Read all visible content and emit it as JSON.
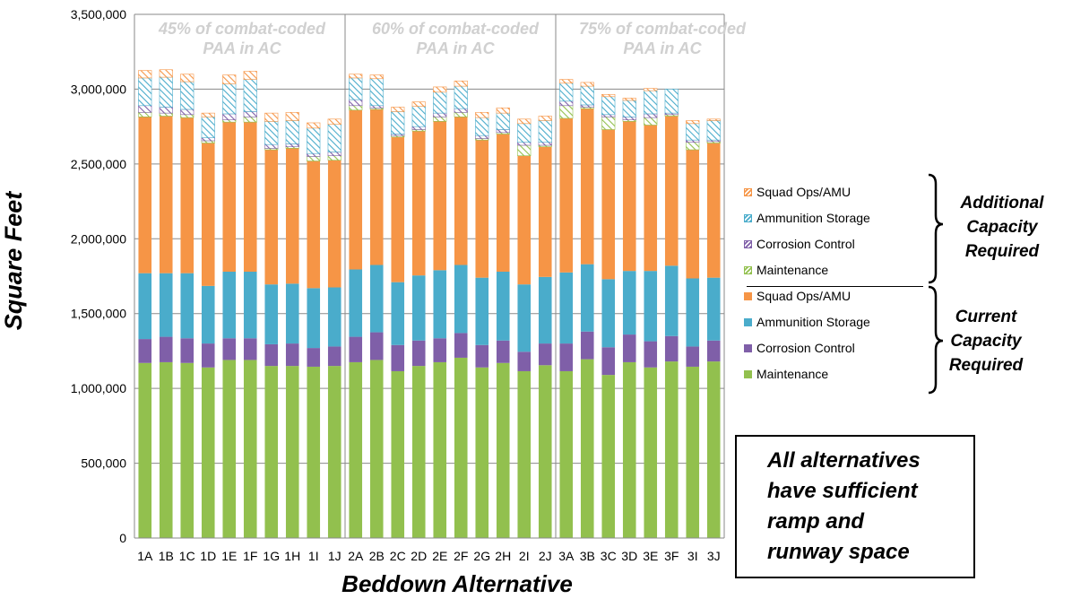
{
  "chart_data": {
    "type": "bar",
    "stacked": true,
    "ylabel": "Square Feet",
    "xlabel": "Beddown Alternative",
    "ylim": [
      0,
      3500000
    ],
    "yticks": [
      0,
      500000,
      1000000,
      1500000,
      2000000,
      2500000,
      3000000,
      3500000
    ],
    "ytick_labels": [
      "0",
      "500,000",
      "1,000,000",
      "1,500,000",
      "2,000,000",
      "2,500,000",
      "3,000,000",
      "3,500,000"
    ],
    "grid": "horizontal",
    "categories": [
      "1A",
      "1B",
      "1C",
      "1D",
      "1E",
      "1F",
      "1G",
      "1H",
      "1I",
      "1J",
      "2A",
      "2B",
      "2C",
      "2D",
      "2E",
      "2F",
      "2G",
      "2H",
      "2I",
      "2J",
      "3A",
      "3B",
      "3C",
      "3D",
      "3E",
      "3F",
      "3I",
      "3J"
    ],
    "groups": [
      {
        "label_line1": "45% of combat-coded",
        "label_line2": "PAA in AC",
        "categories": [
          "1A",
          "1B",
          "1C",
          "1D",
          "1E",
          "1F",
          "1G",
          "1H",
          "1I",
          "1J"
        ]
      },
      {
        "label_line1": "60% of combat-coded",
        "label_line2": "PAA in AC",
        "categories": [
          "2A",
          "2B",
          "2C",
          "2D",
          "2E",
          "2F",
          "2G",
          "2H",
          "2I",
          "2J"
        ]
      },
      {
        "label_line1": "75% of combat-coded",
        "label_line2": "PAA in AC",
        "categories": [
          "3A",
          "3B",
          "3C",
          "3D",
          "3E",
          "3F",
          "3I",
          "3J"
        ]
      }
    ],
    "series": [
      {
        "name": "Maintenance",
        "group": "current",
        "color": "#92c04e",
        "pattern": "solid",
        "values": [
          1170000,
          1175000,
          1170000,
          1140000,
          1190000,
          1190000,
          1150000,
          1150000,
          1145000,
          1150000,
          1175000,
          1190000,
          1115000,
          1150000,
          1175000,
          1205000,
          1140000,
          1170000,
          1115000,
          1155000,
          1115000,
          1195000,
          1090000,
          1175000,
          1140000,
          1180000,
          1145000,
          1180000
        ]
      },
      {
        "name": "Corrosion Control",
        "group": "current",
        "color": "#7f5fa8",
        "pattern": "solid",
        "values": [
          160000,
          170000,
          165000,
          160000,
          145000,
          145000,
          145000,
          150000,
          125000,
          130000,
          170000,
          185000,
          175000,
          170000,
          160000,
          165000,
          150000,
          150000,
          130000,
          145000,
          185000,
          185000,
          185000,
          185000,
          175000,
          170000,
          135000,
          140000
        ]
      },
      {
        "name": "Ammunition Storage",
        "group": "current",
        "color": "#4aaccb",
        "pattern": "solid",
        "values": [
          440000,
          425000,
          435000,
          385000,
          445000,
          445000,
          400000,
          400000,
          400000,
          395000,
          450000,
          450000,
          420000,
          435000,
          455000,
          455000,
          450000,
          460000,
          450000,
          445000,
          475000,
          450000,
          455000,
          425000,
          470000,
          470000,
          455000,
          420000
        ]
      },
      {
        "name": "Squad Ops/AMU",
        "group": "current",
        "color": "#f69546",
        "pattern": "solid",
        "values": [
          1045000,
          1050000,
          1040000,
          955000,
          1000000,
          1000000,
          900000,
          905000,
          850000,
          850000,
          1065000,
          1040000,
          970000,
          965000,
          995000,
          990000,
          920000,
          920000,
          860000,
          870000,
          1030000,
          1040000,
          1000000,
          1000000,
          975000,
          1000000,
          860000,
          900000
        ]
      },
      {
        "name": "Maintenance",
        "group": "additional",
        "color": "#92c04e",
        "pattern": "hatch",
        "values": [
          30000,
          20000,
          20000,
          15000,
          15000,
          35000,
          10000,
          10000,
          30000,
          30000,
          30000,
          10000,
          10000,
          10000,
          30000,
          30000,
          10000,
          10000,
          70000,
          10000,
          85000,
          10000,
          85000,
          10000,
          50000,
          10000,
          50000,
          10000
        ]
      },
      {
        "name": "Corrosion Control",
        "group": "additional",
        "color": "#7f5fa8",
        "pattern": "hatch",
        "values": [
          45000,
          40000,
          35000,
          20000,
          40000,
          35000,
          25000,
          20000,
          20000,
          25000,
          40000,
          15000,
          10000,
          20000,
          25000,
          25000,
          20000,
          20000,
          20000,
          20000,
          30000,
          15000,
          15000,
          20000,
          25000,
          10000,
          15000,
          10000
        ]
      },
      {
        "name": "Ammunition Storage",
        "group": "additional",
        "color": "#4aaccb",
        "pattern": "hatch",
        "values": [
          185000,
          200000,
          185000,
          140000,
          200000,
          215000,
          155000,
          155000,
          170000,
          185000,
          145000,
          180000,
          150000,
          135000,
          140000,
          150000,
          120000,
          110000,
          125000,
          145000,
          120000,
          125000,
          120000,
          110000,
          155000,
          160000,
          110000,
          130000
        ]
      },
      {
        "name": "Squad Ops/AMU",
        "group": "additional",
        "color": "#f69546",
        "pattern": "hatch",
        "values": [
          50000,
          50000,
          50000,
          25000,
          60000,
          55000,
          55000,
          55000,
          35000,
          35000,
          25000,
          25000,
          30000,
          30000,
          35000,
          35000,
          35000,
          35000,
          30000,
          30000,
          25000,
          25000,
          15000,
          15000,
          15000,
          0,
          20000,
          10000
        ]
      }
    ],
    "legend": {
      "placement": "right",
      "items": [
        "Squad Ops/AMU",
        "Ammunition Storage",
        "Corrosion Control",
        "Maintenance",
        "Squad Ops/AMU",
        "Ammunition Storage",
        "Corrosion Control",
        "Maintenance"
      ],
      "additional_label": [
        "Additional",
        "Capacity",
        "Required"
      ],
      "current_label": [
        "Current",
        "Capacity",
        "Required"
      ]
    }
  },
  "note": {
    "lines": [
      "All alternatives",
      "have sufficient",
      "ramp and",
      "runway space"
    ]
  }
}
